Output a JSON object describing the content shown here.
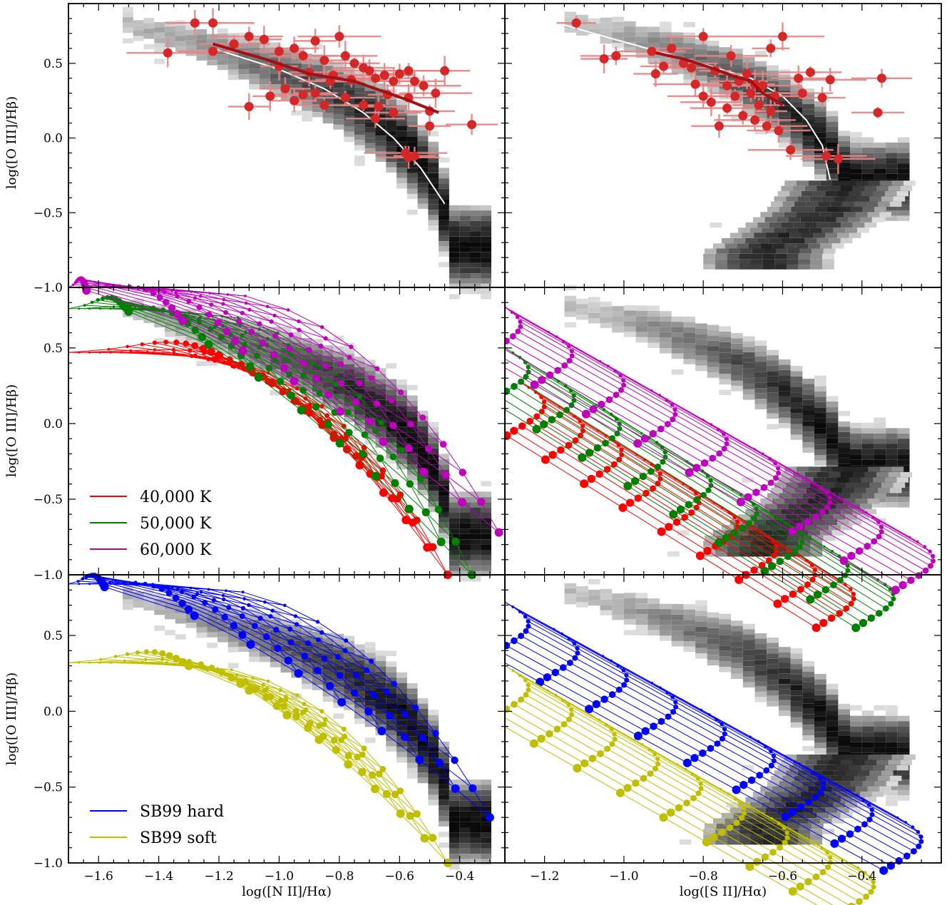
{
  "chart_data": [
    {
      "type": "scatter",
      "panel": "top-left",
      "description_axes": {
        "xlabel": "",
        "ylabel": "log([O III]/Hβ)"
      },
      "xlim": [
        -1.7,
        -0.25
      ],
      "ylim": [
        -1.0,
        0.9
      ],
      "y_ticks": [
        -1.0,
        -0.5,
        0.0,
        0.5
      ],
      "density_ridge": [
        [
          -1.25,
          0.57
        ],
        [
          -1.0,
          0.42
        ],
        [
          -0.8,
          0.26
        ],
        [
          -0.65,
          0.08
        ],
        [
          -0.55,
          -0.12
        ],
        [
          -0.48,
          -0.32
        ],
        [
          -0.44,
          -0.55
        ]
      ],
      "white_curve": [
        [
          -1.22,
          0.6
        ],
        [
          -1.0,
          0.46
        ],
        [
          -0.85,
          0.33
        ],
        [
          -0.72,
          0.17
        ],
        [
          -0.62,
          0.0
        ],
        [
          -0.53,
          -0.2
        ],
        [
          -0.45,
          -0.44
        ]
      ],
      "red_trend": [
        [
          -1.22,
          0.63
        ],
        [
          -1.05,
          0.53
        ],
        [
          -0.9,
          0.43
        ],
        [
          -0.75,
          0.38
        ],
        [
          -0.68,
          0.33
        ],
        [
          -0.58,
          0.26
        ],
        [
          -0.47,
          0.17
        ]
      ],
      "points": [
        [
          -1.28,
          0.77
        ],
        [
          -1.22,
          0.77
        ],
        [
          -1.37,
          0.57
        ],
        [
          -1.22,
          0.58
        ],
        [
          -1.15,
          0.63
        ],
        [
          -1.1,
          0.68
        ],
        [
          -1.05,
          0.66
        ],
        [
          -1.0,
          0.58
        ],
        [
          -0.95,
          0.6
        ],
        [
          -0.92,
          0.55
        ],
        [
          -0.88,
          0.65
        ],
        [
          -0.85,
          0.52
        ],
        [
          -0.8,
          0.68
        ],
        [
          -0.78,
          0.55
        ],
        [
          -0.75,
          0.5
        ],
        [
          -0.72,
          0.47
        ],
        [
          -0.7,
          0.45
        ],
        [
          -0.68,
          0.4
        ],
        [
          -0.65,
          0.42
        ],
        [
          -0.6,
          0.43
        ],
        [
          -0.57,
          0.45
        ],
        [
          -0.55,
          0.38
        ],
        [
          -0.52,
          0.35
        ],
        [
          -0.48,
          0.3
        ],
        [
          -0.45,
          0.45
        ],
        [
          -0.36,
          0.09
        ],
        [
          -0.83,
          0.38
        ],
        [
          -0.88,
          0.3
        ],
        [
          -0.92,
          0.29
        ],
        [
          -0.98,
          0.33
        ],
        [
          -1.03,
          0.28
        ],
        [
          -1.1,
          0.21
        ],
        [
          -0.95,
          0.25
        ],
        [
          -0.78,
          0.27
        ],
        [
          -0.72,
          0.22
        ],
        [
          -0.67,
          0.21
        ],
        [
          -0.62,
          0.17
        ],
        [
          -0.57,
          0.27
        ],
        [
          -0.5,
          0.18
        ],
        [
          -0.5,
          0.08
        ],
        [
          -0.68,
          0.13
        ],
        [
          -0.85,
          0.22
        ],
        [
          -0.58,
          -0.1
        ],
        [
          -0.57,
          -0.13
        ],
        [
          -0.55,
          -0.12
        ],
        [
          -1.0,
          0.48
        ],
        [
          -0.9,
          0.44
        ],
        [
          -0.82,
          0.42
        ],
        [
          -0.76,
          0.39
        ],
        [
          -0.62,
          0.38
        ],
        [
          -0.64,
          0.29
        ]
      ]
    },
    {
      "type": "scatter",
      "panel": "top-right",
      "description_axes": {
        "xlabel": "",
        "ylabel": ""
      },
      "xlim": [
        -1.3,
        -0.2
      ],
      "ylim": [
        -1.0,
        0.9
      ],
      "white_curve": [
        [
          -1.18,
          0.78
        ],
        [
          -1.05,
          0.68
        ],
        [
          -0.9,
          0.57
        ],
        [
          -0.78,
          0.48
        ],
        [
          -0.68,
          0.4
        ],
        [
          -0.6,
          0.28
        ],
        [
          -0.54,
          0.12
        ],
        [
          -0.5,
          -0.05
        ],
        [
          -0.48,
          -0.28
        ]
      ],
      "red_trend": [
        [
          -0.92,
          0.57
        ],
        [
          -0.85,
          0.53
        ],
        [
          -0.78,
          0.47
        ],
        [
          -0.72,
          0.41
        ],
        [
          -0.68,
          0.38
        ],
        [
          -0.65,
          0.3
        ],
        [
          -0.6,
          0.22
        ]
      ],
      "points": [
        [
          -1.12,
          0.77
        ],
        [
          -1.05,
          0.53
        ],
        [
          -1.02,
          0.55
        ],
        [
          -0.93,
          0.58
        ],
        [
          -0.9,
          0.48
        ],
        [
          -0.92,
          0.43
        ],
        [
          -0.88,
          0.6
        ],
        [
          -0.83,
          0.47
        ],
        [
          -0.8,
          0.68
        ],
        [
          -0.77,
          0.45
        ],
        [
          -0.73,
          0.55
        ],
        [
          -0.71,
          0.38
        ],
        [
          -0.68,
          0.3
        ],
        [
          -0.69,
          0.43
        ],
        [
          -0.72,
          0.28
        ],
        [
          -0.67,
          0.36
        ],
        [
          -0.65,
          0.35
        ],
        [
          -0.66,
          0.22
        ],
        [
          -0.62,
          0.28
        ],
        [
          -0.6,
          0.68
        ],
        [
          -0.63,
          0.6
        ],
        [
          -0.56,
          0.4
        ],
        [
          -0.53,
          0.44
        ],
        [
          -0.55,
          0.3
        ],
        [
          -0.5,
          0.27
        ],
        [
          -0.48,
          0.39
        ],
        [
          -0.7,
          0.15
        ],
        [
          -0.67,
          0.12
        ],
        [
          -0.63,
          0.18
        ],
        [
          -0.64,
          0.08
        ],
        [
          -0.61,
          0.05
        ],
        [
          -0.78,
          0.24
        ],
        [
          -0.74,
          0.2
        ],
        [
          -0.8,
          0.28
        ],
        [
          -0.76,
          0.08
        ],
        [
          -0.58,
          -0.08
        ],
        [
          -0.49,
          -0.12
        ],
        [
          -0.46,
          -0.14
        ],
        [
          -0.36,
          0.17
        ],
        [
          -0.35,
          0.4
        ],
        [
          -0.85,
          0.5
        ],
        [
          -0.82,
          0.36
        ],
        [
          -0.74,
          0.35
        ]
      ]
    },
    {
      "type": "line",
      "panel": "middle-left",
      "description_axes": {
        "xlabel": "",
        "ylabel": "log([O III]/Hβ)"
      },
      "xlim": [
        -1.7,
        -0.25
      ],
      "ylim": [
        -1.0,
        0.9
      ],
      "y_ticks": [
        -1.0,
        -0.5,
        0.0,
        0.5
      ],
      "legend": {
        "position": "lower-left",
        "entries": [
          "40,000 K",
          "50,000 K",
          "60,000 K"
        ]
      },
      "series": [
        {
          "name": "40,000 K",
          "color": "#ff0000",
          "x0": -1.2,
          "x1": -0.44,
          "yTop": 0.45,
          "yBot": -1.0,
          "dipMax": 0.19,
          "dipMin": 0.05
        },
        {
          "name": "50,000 K",
          "color": "#008000",
          "x0": -1.5,
          "x1": -0.36,
          "yTop": 0.74,
          "yBot": -1.0,
          "dipMax": 0.2,
          "dipMin": 0.04
        },
        {
          "name": "60,000 K",
          "color": "#bf00bf",
          "x0": -1.64,
          "x1": -0.27,
          "yTop": 0.88,
          "yBot": -0.72,
          "dipMax": 0.16,
          "dipMin": 0.03
        }
      ]
    },
    {
      "type": "line",
      "panel": "middle-right",
      "description_axes": {
        "xlabel": "",
        "ylabel": ""
      },
      "xlim": [
        -1.3,
        -0.2
      ],
      "ylim": [
        -1.0,
        0.9
      ],
      "series": [
        {
          "name": "40,000 K",
          "color": "#ff0000",
          "x0": -1.26,
          "x1": -0.48,
          "yTop": 0.27,
          "yBot": -1.0
        },
        {
          "name": "50,000 K",
          "color": "#008000",
          "x0": -1.3,
          "x1": -0.38,
          "yTop": 0.5,
          "yBot": -1.0
        },
        {
          "name": "60,000 K",
          "color": "#bf00bf",
          "x0": -1.32,
          "x1": -0.28,
          "yTop": 0.8,
          "yBot": -0.75
        }
      ]
    },
    {
      "type": "line",
      "panel": "bottom-left",
      "description_axes": {
        "xlabel": "log([N II]/Hα)",
        "ylabel": "log([O III]/Hβ)"
      },
      "xlim": [
        -1.7,
        -0.25
      ],
      "ylim": [
        -1.0,
        0.9
      ],
      "x_ticks": [
        -1.6,
        -1.4,
        -1.2,
        -1.0,
        -0.8,
        -0.6,
        -0.4
      ],
      "y_ticks": [
        -1.0,
        -0.5,
        0.0,
        0.5
      ],
      "legend": {
        "position": "lower-left",
        "entries": [
          "SB99 hard",
          "SB99 soft"
        ]
      },
      "series": [
        {
          "name": "SB99 hard",
          "color": "#0000ff",
          "x0": -1.58,
          "x1": -0.3,
          "yTop": 0.82,
          "yBot": -0.7,
          "dipMax": 0.16,
          "dipMin": 0.03
        },
        {
          "name": "SB99 soft",
          "color": "#bfbf00",
          "x0": -1.3,
          "x1": -0.44,
          "yTop": 0.3,
          "yBot": -1.0,
          "dipMax": 0.2,
          "dipMin": 0.05
        }
      ]
    },
    {
      "type": "line",
      "panel": "bottom-right",
      "description_axes": {
        "xlabel": "log([S II]/Hα)",
        "ylabel": ""
      },
      "xlim": [
        -1.3,
        -0.2
      ],
      "ylim": [
        -1.0,
        0.9
      ],
      "x_ticks": [
        -1.2,
        -1.0,
        -0.8,
        -0.6,
        -0.4
      ],
      "series": [
        {
          "name": "SB99 hard",
          "color": "#0000ff",
          "x0": -1.3,
          "x1": -0.31,
          "yTop": 0.72,
          "yBot": -0.7
        },
        {
          "name": "SB99 soft",
          "color": "#bfbf00",
          "x0": -1.3,
          "x1": -0.43,
          "yTop": 0.3,
          "yBot": -1.0
        }
      ]
    }
  ],
  "labels": {
    "ylabel": "log([O III]/Hβ)",
    "xlabel_left": "log([N II]/Hα)",
    "xlabel_right": "log([S II]/Hα)"
  }
}
